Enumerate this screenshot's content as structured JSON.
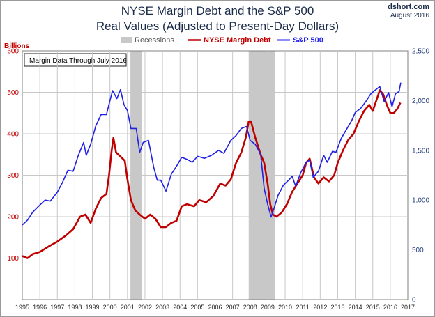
{
  "header": {
    "title_line1": "NYSE Margin Debt and the S&P 500",
    "title_line2": "Real Values (Adjusted to Present-Day Dollars)",
    "site": "dshort.com",
    "date": "August 2016"
  },
  "legend": {
    "recessions": "Recessions",
    "margin": "NYSE Margin Debt",
    "sp500": "S&P 500"
  },
  "note": "Margin Data Through July 2016",
  "colors": {
    "margin": "#c00000",
    "sp500": "#1f1fe8",
    "recession": "#c8c8c8",
    "left_axis": "#c00000",
    "right_axis": "#1f3a7a"
  },
  "chart_data": {
    "type": "line",
    "title": "NYSE Margin Debt and the S&P 500 — Real Values (Adjusted to Present-Day Dollars)",
    "left_axis_label": "Billions",
    "left_ylim": [
      0,
      600
    ],
    "left_ticks": [
      0,
      100,
      200,
      300,
      400,
      500,
      600
    ],
    "left_tick_labels": [
      "-",
      "100",
      "200",
      "300",
      "400",
      "500",
      "600"
    ],
    "right_ylim": [
      0,
      2500
    ],
    "right_ticks": [
      0,
      500,
      1000,
      1500,
      2000,
      2500
    ],
    "right_tick_labels": [
      "0",
      "500",
      "1,000",
      "1,500",
      "2,000",
      "2,500"
    ],
    "xlim": [
      1995,
      2017
    ],
    "x_ticks": [
      1995,
      1996,
      1997,
      1998,
      1999,
      2000,
      2001,
      2002,
      2003,
      2004,
      2005,
      2006,
      2007,
      2008,
      2009,
      2010,
      2011,
      2012,
      2013,
      2014,
      2015,
      2016,
      2017
    ],
    "x_tick_labels": [
      "1995",
      "1996",
      "1997",
      "1998",
      "1999",
      "2000",
      "2001",
      "2002",
      "2003",
      "2004",
      "2005",
      "2006",
      "2007",
      "2008",
      "2009",
      "2010",
      "2011",
      "2012",
      "2013",
      "2014",
      "2015",
      "2016",
      "2017"
    ],
    "recessions": [
      [
        2001.17,
        2001.83
      ],
      [
        2007.92,
        2009.42
      ]
    ],
    "series": [
      {
        "name": "NYSE Margin Debt",
        "axis": "left",
        "points": [
          [
            1995.0,
            105
          ],
          [
            1995.3,
            100
          ],
          [
            1995.6,
            110
          ],
          [
            1996.0,
            115
          ],
          [
            1996.5,
            128
          ],
          [
            1997.0,
            140
          ],
          [
            1997.5,
            155
          ],
          [
            1997.9,
            170
          ],
          [
            1998.3,
            200
          ],
          [
            1998.6,
            205
          ],
          [
            1998.9,
            185
          ],
          [
            1999.2,
            220
          ],
          [
            1999.5,
            245
          ],
          [
            1999.8,
            255
          ],
          [
            1999.95,
            300
          ],
          [
            2000.1,
            360
          ],
          [
            2000.2,
            390
          ],
          [
            2000.35,
            355
          ],
          [
            2000.6,
            345
          ],
          [
            2000.85,
            335
          ],
          [
            2001.0,
            290
          ],
          [
            2001.2,
            240
          ],
          [
            2001.45,
            215
          ],
          [
            2001.7,
            205
          ],
          [
            2002.0,
            195
          ],
          [
            2002.3,
            205
          ],
          [
            2002.6,
            195
          ],
          [
            2002.9,
            175
          ],
          [
            2003.2,
            175
          ],
          [
            2003.5,
            185
          ],
          [
            2003.8,
            190
          ],
          [
            2004.1,
            225
          ],
          [
            2004.4,
            230
          ],
          [
            2004.8,
            225
          ],
          [
            2005.1,
            240
          ],
          [
            2005.5,
            235
          ],
          [
            2005.9,
            250
          ],
          [
            2006.3,
            280
          ],
          [
            2006.6,
            275
          ],
          [
            2006.9,
            290
          ],
          [
            2007.2,
            330
          ],
          [
            2007.5,
            355
          ],
          [
            2007.75,
            390
          ],
          [
            2007.92,
            430
          ],
          [
            2008.05,
            430
          ],
          [
            2008.3,
            390
          ],
          [
            2008.6,
            350
          ],
          [
            2008.8,
            330
          ],
          [
            2009.0,
            280
          ],
          [
            2009.15,
            230
          ],
          [
            2009.3,
            205
          ],
          [
            2009.5,
            200
          ],
          [
            2009.8,
            210
          ],
          [
            2010.1,
            230
          ],
          [
            2010.4,
            260
          ],
          [
            2010.7,
            280
          ],
          [
            2011.0,
            300
          ],
          [
            2011.2,
            330
          ],
          [
            2011.4,
            340
          ],
          [
            2011.65,
            295
          ],
          [
            2011.9,
            280
          ],
          [
            2012.2,
            295
          ],
          [
            2012.5,
            285
          ],
          [
            2012.8,
            300
          ],
          [
            2013.0,
            330
          ],
          [
            2013.3,
            360
          ],
          [
            2013.6,
            385
          ],
          [
            2013.9,
            400
          ],
          [
            2014.2,
            430
          ],
          [
            2014.5,
            455
          ],
          [
            2014.8,
            470
          ],
          [
            2015.0,
            455
          ],
          [
            2015.2,
            480
          ],
          [
            2015.4,
            505
          ],
          [
            2015.6,
            495
          ],
          [
            2015.8,
            470
          ],
          [
            2016.0,
            450
          ],
          [
            2016.2,
            450
          ],
          [
            2016.4,
            460
          ],
          [
            2016.58,
            475
          ]
        ]
      },
      {
        "name": "S&P 500",
        "axis": "right",
        "points": [
          [
            1995.0,
            750
          ],
          [
            1995.3,
            800
          ],
          [
            1995.6,
            880
          ],
          [
            1996.0,
            950
          ],
          [
            1996.3,
            1000
          ],
          [
            1996.6,
            990
          ],
          [
            1997.0,
            1080
          ],
          [
            1997.3,
            1180
          ],
          [
            1997.6,
            1300
          ],
          [
            1997.9,
            1290
          ],
          [
            1998.2,
            1450
          ],
          [
            1998.5,
            1580
          ],
          [
            1998.65,
            1450
          ],
          [
            1998.9,
            1560
          ],
          [
            1999.2,
            1750
          ],
          [
            1999.5,
            1860
          ],
          [
            1999.8,
            1860
          ],
          [
            2000.0,
            2000
          ],
          [
            2000.15,
            2100
          ],
          [
            2000.4,
            2020
          ],
          [
            2000.6,
            2110
          ],
          [
            2000.8,
            1960
          ],
          [
            2001.0,
            1900
          ],
          [
            2001.2,
            1720
          ],
          [
            2001.5,
            1720
          ],
          [
            2001.7,
            1480
          ],
          [
            2001.9,
            1580
          ],
          [
            2002.2,
            1600
          ],
          [
            2002.5,
            1330
          ],
          [
            2002.7,
            1200
          ],
          [
            2002.9,
            1200
          ],
          [
            2003.2,
            1090
          ],
          [
            2003.5,
            1260
          ],
          [
            2003.8,
            1340
          ],
          [
            2004.1,
            1430
          ],
          [
            2004.4,
            1410
          ],
          [
            2004.7,
            1380
          ],
          [
            2005.0,
            1440
          ],
          [
            2005.4,
            1420
          ],
          [
            2005.8,
            1450
          ],
          [
            2006.2,
            1500
          ],
          [
            2006.5,
            1470
          ],
          [
            2006.9,
            1600
          ],
          [
            2007.2,
            1650
          ],
          [
            2007.5,
            1720
          ],
          [
            2007.8,
            1740
          ],
          [
            2008.0,
            1600
          ],
          [
            2008.3,
            1560
          ],
          [
            2008.6,
            1460
          ],
          [
            2008.8,
            1120
          ],
          [
            2009.0,
            960
          ],
          [
            2009.2,
            830
          ],
          [
            2009.35,
            910
          ],
          [
            2009.6,
            1050
          ],
          [
            2009.9,
            1150
          ],
          [
            2010.2,
            1200
          ],
          [
            2010.4,
            1240
          ],
          [
            2010.6,
            1140
          ],
          [
            2010.9,
            1280
          ],
          [
            2011.2,
            1380
          ],
          [
            2011.4,
            1400
          ],
          [
            2011.6,
            1230
          ],
          [
            2011.9,
            1290
          ],
          [
            2012.2,
            1450
          ],
          [
            2012.4,
            1380
          ],
          [
            2012.7,
            1490
          ],
          [
            2012.9,
            1480
          ],
          [
            2013.2,
            1620
          ],
          [
            2013.5,
            1710
          ],
          [
            2013.8,
            1800
          ],
          [
            2014.0,
            1880
          ],
          [
            2014.3,
            1920
          ],
          [
            2014.6,
            1990
          ],
          [
            2014.9,
            2070
          ],
          [
            2015.1,
            2100
          ],
          [
            2015.4,
            2140
          ],
          [
            2015.65,
            1990
          ],
          [
            2015.9,
            2080
          ],
          [
            2016.1,
            1940
          ],
          [
            2016.3,
            2070
          ],
          [
            2016.5,
            2090
          ],
          [
            2016.6,
            2180
          ]
        ]
      }
    ]
  }
}
